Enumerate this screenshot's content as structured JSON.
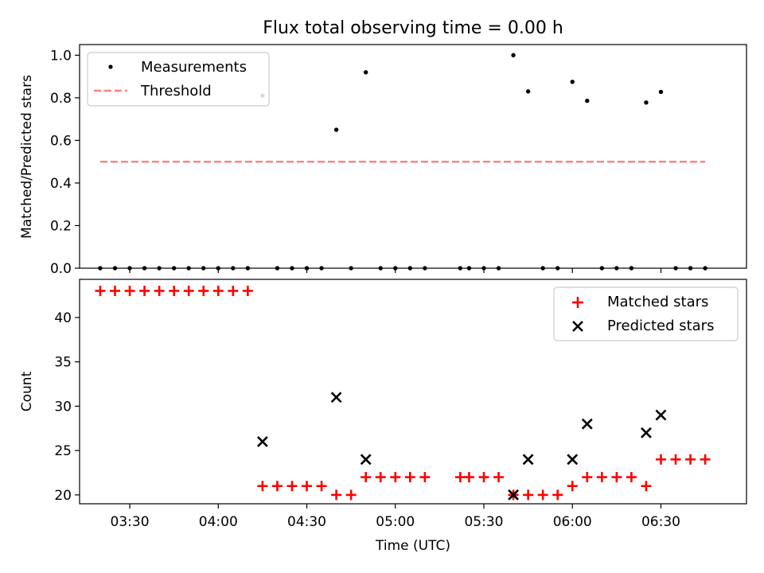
{
  "chart_data": [
    {
      "type": "scatter",
      "title": "Flux total observing time = 0.00 h",
      "xlabel": "",
      "ylabel": "Matched/Predicted stars",
      "ylim": [
        0,
        1.05
      ],
      "yticks": [
        "0.0",
        "0.2",
        "0.4",
        "0.6",
        "0.8",
        "1.0"
      ],
      "ytick_values": [
        0,
        0.2,
        0.4,
        0.6,
        0.8,
        1.0
      ],
      "legend": {
        "placement": "top-left",
        "measurements": "Measurements",
        "threshold": "Threshold"
      },
      "threshold": {
        "value": 0.5,
        "x_start": "03:20",
        "x_end": "06:45",
        "color": "#ff7f7f"
      },
      "series": [
        {
          "name": "Measurements",
          "x": [
            "03:20",
            "03:25",
            "03:30",
            "03:35",
            "03:40",
            "03:45",
            "03:50",
            "03:55",
            "04:00",
            "04:05",
            "04:10",
            "04:15",
            "04:20",
            "04:25",
            "04:30",
            "04:35",
            "04:40",
            "04:45",
            "04:50",
            "04:55",
            "05:00",
            "05:05",
            "05:10",
            "05:22",
            "05:25",
            "05:30",
            "05:35",
            "05:40",
            "05:45",
            "05:50",
            "05:55",
            "06:00",
            "06:05",
            "06:10",
            "06:15",
            "06:20",
            "06:25",
            "06:30",
            "06:35",
            "06:40",
            "06:45"
          ],
          "values": [
            0,
            0,
            0,
            0,
            0,
            0,
            0,
            0,
            0,
            0,
            0,
            0.81,
            0,
            0,
            0,
            0,
            0.65,
            0,
            0.92,
            0,
            0,
            0,
            0,
            0,
            0,
            0,
            0,
            1.0,
            0.83,
            0,
            0,
            0.875,
            0.786,
            0,
            0,
            0,
            0.778,
            0.828,
            0,
            0,
            0
          ]
        }
      ]
    },
    {
      "type": "scatter",
      "title": "",
      "xlabel": "Time (UTC)",
      "ylabel": "Count",
      "ylim": [
        19,
        44.3
      ],
      "yticks": [
        "20",
        "25",
        "30",
        "35",
        "40"
      ],
      "ytick_values": [
        20,
        25,
        30,
        35,
        40
      ],
      "xlim": [
        "03:13",
        "06:59"
      ],
      "xticks": [
        "03:30",
        "04:00",
        "04:30",
        "05:00",
        "05:30",
        "06:00",
        "06:30"
      ],
      "legend": {
        "placement": "top-right",
        "matched": "Matched stars",
        "predicted": "Predicted stars"
      },
      "series": [
        {
          "name": "Matched stars",
          "color": "#ff0000",
          "x": [
            "03:20",
            "03:25",
            "03:30",
            "03:35",
            "03:40",
            "03:45",
            "03:50",
            "03:55",
            "04:00",
            "04:05",
            "04:10",
            "04:15",
            "04:20",
            "04:25",
            "04:30",
            "04:35",
            "04:40",
            "04:45",
            "04:50",
            "04:55",
            "05:00",
            "05:05",
            "05:10",
            "05:22",
            "05:25",
            "05:30",
            "05:35",
            "05:40",
            "05:45",
            "05:50",
            "05:55",
            "06:00",
            "06:05",
            "06:10",
            "06:15",
            "06:20",
            "06:25",
            "06:30",
            "06:35",
            "06:40",
            "06:45"
          ],
          "values": [
            43,
            43,
            43,
            43,
            43,
            43,
            43,
            43,
            43,
            43,
            43,
            21,
            21,
            21,
            21,
            21,
            20,
            20,
            22,
            22,
            22,
            22,
            22,
            22,
            22,
            22,
            22,
            20,
            20,
            20,
            20,
            21,
            22,
            22,
            22,
            22,
            21,
            24,
            24,
            24,
            24
          ]
        },
        {
          "name": "Predicted stars",
          "color": "#000000",
          "x": [
            "04:15",
            "04:40",
            "04:50",
            "05:40",
            "05:45",
            "06:00",
            "06:05",
            "06:25",
            "06:30"
          ],
          "values": [
            26,
            31,
            24,
            20,
            24,
            24,
            28,
            27,
            29
          ]
        }
      ]
    }
  ]
}
